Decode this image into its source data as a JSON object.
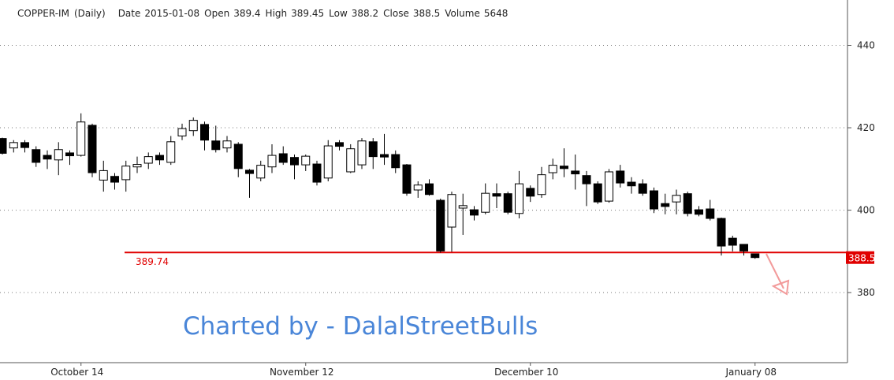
{
  "chart_data": {
    "type": "candlestick",
    "header": {
      "symbol": "COPPER-IM",
      "period": "(Daily)",
      "fields": [
        {
          "label": "Date",
          "value": "2015-01-08"
        },
        {
          "label": "Open",
          "value": 389.4
        },
        {
          "label": "High",
          "value": 389.45
        },
        {
          "label": "Low",
          "value": 388.2
        },
        {
          "label": "Close",
          "value": 388.5
        },
        {
          "label": "Volume",
          "value": 5648
        }
      ]
    },
    "categories": [
      null,
      null,
      null,
      null,
      null,
      null,
      null,
      "October 14",
      null,
      null,
      null,
      null,
      null,
      null,
      null,
      null,
      null,
      null,
      null,
      null,
      null,
      null,
      null,
      null,
      null,
      null,
      null,
      "November 12",
      null,
      null,
      null,
      null,
      null,
      null,
      null,
      null,
      null,
      null,
      null,
      null,
      null,
      null,
      null,
      null,
      null,
      null,
      null,
      "December 10",
      null,
      null,
      null,
      null,
      null,
      null,
      null,
      null,
      null,
      null,
      null,
      null,
      null,
      null,
      null,
      null,
      null,
      null,
      null,
      "January 08"
    ],
    "open": [
      417.4,
      415.1,
      416.4,
      414.7,
      413.3,
      412.2,
      413.9,
      413.3,
      420.6,
      407.3,
      408.2,
      407.4,
      410.5,
      411.4,
      413.3,
      411.6,
      418,
      419.3,
      420.8,
      416.8,
      415.1,
      416,
      409.7,
      407.8,
      410.5,
      413.7,
      412.8,
      411,
      411.2,
      407.8,
      416.4,
      409.3,
      411,
      416.6,
      413.5,
      413.5,
      411,
      404.9,
      406.4,
      402.4,
      395.9,
      400.5,
      400.1,
      399.5,
      404,
      404,
      399.2,
      405.3,
      403.8,
      409.1,
      410.7,
      409.5,
      408.4,
      406.4,
      402.2,
      409.5,
      406.8,
      406.4,
      404.7,
      401.6,
      402,
      404,
      400.1,
      400.3,
      398,
      393.2,
      391.7,
      389.4
    ],
    "high": [
      417.6,
      417,
      417,
      415.5,
      414.5,
      416.5,
      414.5,
      423.5,
      421,
      412,
      409,
      412,
      413,
      414,
      414,
      418,
      421,
      422.5,
      421.5,
      420.5,
      418,
      416.5,
      410,
      412,
      416,
      415.5,
      413.5,
      413.5,
      412,
      417,
      417,
      416,
      417.5,
      417.5,
      418.5,
      414.5,
      411.2,
      407,
      407.5,
      402.8,
      404.5,
      404,
      401,
      406.5,
      406.5,
      404.5,
      409.5,
      406,
      410.5,
      412.5,
      415,
      413.5,
      409.5,
      407,
      410,
      411,
      408,
      407.5,
      405.5,
      404,
      405,
      404.5,
      401,
      402.5,
      398.2,
      393.8,
      391.8,
      389.45
    ],
    "low": [
      413.5,
      414,
      414,
      410.5,
      410,
      408.5,
      411,
      413,
      408,
      404.5,
      405,
      404.5,
      409,
      410,
      411,
      411,
      417,
      418,
      414.5,
      414,
      414,
      408,
      403,
      407,
      409,
      411,
      407.5,
      409.5,
      406,
      407,
      414.5,
      409,
      410,
      410,
      411,
      409,
      403.5,
      403,
      403.5,
      389.7,
      389.9,
      394,
      397.5,
      399,
      400.5,
      399,
      398,
      402,
      403,
      407.5,
      408,
      405,
      401,
      401.5,
      401.8,
      405.5,
      404,
      403.5,
      399.3,
      399,
      399,
      398.5,
      398.5,
      397.5,
      389,
      390,
      389,
      388.2
    ],
    "close": [
      413.8,
      416.4,
      415.2,
      411.6,
      412.4,
      414.7,
      413.2,
      421.4,
      409.1,
      409.6,
      406.8,
      410.7,
      411.1,
      413,
      412.2,
      416.6,
      419.8,
      421.8,
      417,
      414.7,
      416.8,
      410.1,
      408.9,
      410.9,
      413.3,
      411.6,
      411,
      413.1,
      406.8,
      415.6,
      415.5,
      414.9,
      416.8,
      413,
      412.9,
      410.3,
      404.1,
      406.1,
      403.8,
      390.1,
      403.8,
      401.1,
      398.8,
      404.1,
      403.4,
      399.5,
      406.4,
      403.4,
      408.6,
      410.9,
      410.1,
      408.8,
      406.4,
      402,
      409.3,
      406.6,
      405.9,
      404.1,
      400.3,
      400.9,
      403.6,
      399.2,
      399,
      398,
      391.3,
      391.5,
      390.1,
      388.5
    ],
    "up_color": "#ffffff",
    "down_color": "#000000",
    "ylim": [
      363,
      451
    ],
    "yticks": [
      380,
      400,
      420,
      440
    ],
    "grid": true,
    "hline": {
      "value": 389.74,
      "label": "389.74",
      "color": "#e00000"
    },
    "watermark": "Charted by - DalalStreetBulls"
  }
}
